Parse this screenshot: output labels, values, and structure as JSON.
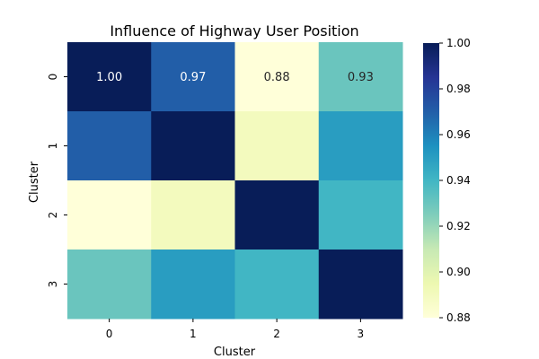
{
  "chart_data": {
    "type": "heatmap",
    "title": "Influence of Highway User Position",
    "xlabel": "Cluster",
    "ylabel": "Cluster",
    "x_categories": [
      "0",
      "1",
      "2",
      "3"
    ],
    "y_categories": [
      "0",
      "1",
      "2",
      "3"
    ],
    "values": [
      [
        1.0,
        0.97,
        0.88,
        0.93
      ],
      [
        0.97,
        1.0,
        0.89,
        0.95
      ],
      [
        0.88,
        0.89,
        1.0,
        0.94
      ],
      [
        0.93,
        0.95,
        0.94,
        1.0
      ]
    ],
    "annotations": [
      [
        "1.00",
        "0.97",
        "0.88",
        "0.93"
      ],
      [
        null,
        null,
        null,
        null
      ],
      [
        null,
        null,
        null,
        null
      ],
      [
        null,
        null,
        null,
        null
      ]
    ],
    "colorbar": {
      "min": 0.88,
      "max": 1.0,
      "ticks": [
        "0.88",
        "0.90",
        "0.92",
        "0.94",
        "0.96",
        "0.98",
        "1.00"
      ]
    },
    "colormap": "YlGnBu",
    "colormap_stops": [
      "#ffffd9",
      "#edf8b1",
      "#c7e9b4",
      "#7fcdbb",
      "#41b6c4",
      "#1d91c0",
      "#225ea8",
      "#253494",
      "#081d58"
    ]
  }
}
